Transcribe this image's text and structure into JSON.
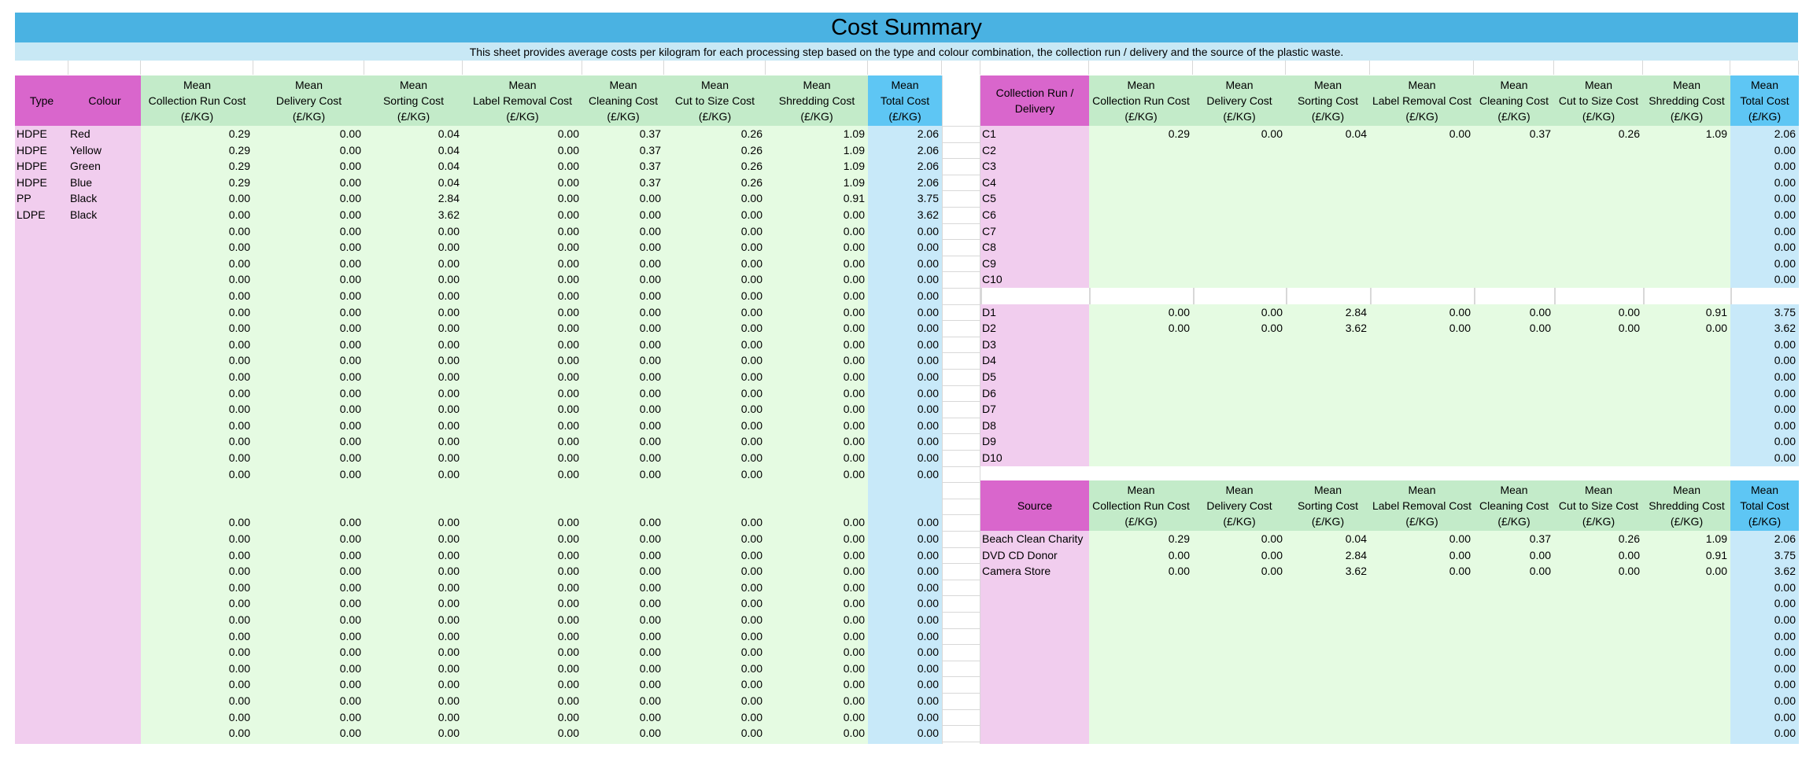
{
  "sheet": {
    "title": "Cost Summary",
    "subtitle": "This sheet provides average costs per kilogram for each processing step based on the type and colour combination, the collection run / delivery and the source of the plastic waste."
  },
  "cost_headers": [
    [
      "Mean",
      "Collection Run Cost",
      "(£/KG)"
    ],
    [
      "Mean",
      "Delivery Cost",
      "(£/KG)"
    ],
    [
      "Mean",
      "Sorting Cost",
      "(£/KG)"
    ],
    [
      "Mean",
      "Label Removal Cost",
      "(£/KG)"
    ],
    [
      "Mean",
      "Cleaning Cost",
      "(£/KG)"
    ],
    [
      "Mean",
      "Cut to Size Cost",
      "(£/KG)"
    ],
    [
      "Mean",
      "Shredding Cost",
      "(£/KG)"
    ],
    [
      "Mean",
      "Total Cost",
      "(£/KG)"
    ]
  ],
  "left_table": {
    "type_header": "Type",
    "colour_header": "Colour",
    "rows": [
      {
        "type": "HDPE",
        "colour": "Red",
        "values": [
          "0.29",
          "0.00",
          "0.04",
          "0.00",
          "0.37",
          "0.26",
          "1.09",
          "2.06"
        ]
      },
      {
        "type": "HDPE",
        "colour": "Yellow",
        "values": [
          "0.29",
          "0.00",
          "0.04",
          "0.00",
          "0.37",
          "0.26",
          "1.09",
          "2.06"
        ]
      },
      {
        "type": "HDPE",
        "colour": "Green",
        "values": [
          "0.29",
          "0.00",
          "0.04",
          "0.00",
          "0.37",
          "0.26",
          "1.09",
          "2.06"
        ]
      },
      {
        "type": "HDPE",
        "colour": "Blue",
        "values": [
          "0.29",
          "0.00",
          "0.04",
          "0.00",
          "0.37",
          "0.26",
          "1.09",
          "2.06"
        ]
      },
      {
        "type": "PP",
        "colour": "Black",
        "values": [
          "0.00",
          "0.00",
          "2.84",
          "0.00",
          "0.00",
          "0.00",
          "0.91",
          "3.75"
        ]
      },
      {
        "type": "LDPE",
        "colour": "Black",
        "values": [
          "0.00",
          "0.00",
          "3.62",
          "0.00",
          "0.00",
          "0.00",
          "0.00",
          "3.62"
        ]
      },
      {
        "type": "",
        "colour": "",
        "values": [
          "0.00",
          "0.00",
          "0.00",
          "0.00",
          "0.00",
          "0.00",
          "0.00",
          "0.00"
        ]
      },
      {
        "type": "",
        "colour": "",
        "values": [
          "0.00",
          "0.00",
          "0.00",
          "0.00",
          "0.00",
          "0.00",
          "0.00",
          "0.00"
        ]
      },
      {
        "type": "",
        "colour": "",
        "values": [
          "0.00",
          "0.00",
          "0.00",
          "0.00",
          "0.00",
          "0.00",
          "0.00",
          "0.00"
        ]
      },
      {
        "type": "",
        "colour": "",
        "values": [
          "0.00",
          "0.00",
          "0.00",
          "0.00",
          "0.00",
          "0.00",
          "0.00",
          "0.00"
        ]
      },
      {
        "type": "",
        "colour": "",
        "values": [
          "0.00",
          "0.00",
          "0.00",
          "0.00",
          "0.00",
          "0.00",
          "0.00",
          "0.00"
        ]
      },
      {
        "type": "",
        "colour": "",
        "values": [
          "0.00",
          "0.00",
          "0.00",
          "0.00",
          "0.00",
          "0.00",
          "0.00",
          "0.00"
        ]
      },
      {
        "type": "",
        "colour": "",
        "values": [
          "0.00",
          "0.00",
          "0.00",
          "0.00",
          "0.00",
          "0.00",
          "0.00",
          "0.00"
        ]
      },
      {
        "type": "",
        "colour": "",
        "values": [
          "0.00",
          "0.00",
          "0.00",
          "0.00",
          "0.00",
          "0.00",
          "0.00",
          "0.00"
        ]
      },
      {
        "type": "",
        "colour": "",
        "values": [
          "0.00",
          "0.00",
          "0.00",
          "0.00",
          "0.00",
          "0.00",
          "0.00",
          "0.00"
        ]
      },
      {
        "type": "",
        "colour": "",
        "values": [
          "0.00",
          "0.00",
          "0.00",
          "0.00",
          "0.00",
          "0.00",
          "0.00",
          "0.00"
        ]
      },
      {
        "type": "",
        "colour": "",
        "values": [
          "0.00",
          "0.00",
          "0.00",
          "0.00",
          "0.00",
          "0.00",
          "0.00",
          "0.00"
        ]
      },
      {
        "type": "",
        "colour": "",
        "values": [
          "0.00",
          "0.00",
          "0.00",
          "0.00",
          "0.00",
          "0.00",
          "0.00",
          "0.00"
        ]
      },
      {
        "type": "",
        "colour": "",
        "values": [
          "0.00",
          "0.00",
          "0.00",
          "0.00",
          "0.00",
          "0.00",
          "0.00",
          "0.00"
        ]
      },
      {
        "type": "",
        "colour": "",
        "values": [
          "0.00",
          "0.00",
          "0.00",
          "0.00",
          "0.00",
          "0.00",
          "0.00",
          "0.00"
        ]
      },
      {
        "type": "",
        "colour": "",
        "values": [
          "0.00",
          "0.00",
          "0.00",
          "0.00",
          "0.00",
          "0.00",
          "0.00",
          "0.00"
        ]
      },
      {
        "type": "",
        "colour": "",
        "values": [
          "0.00",
          "0.00",
          "0.00",
          "0.00",
          "0.00",
          "0.00",
          "0.00",
          "0.00"
        ]
      },
      {
        "type": "",
        "colour": "",
        "values": [
          "0.00",
          "0.00",
          "0.00",
          "0.00",
          "0.00",
          "0.00",
          "0.00",
          "0.00"
        ]
      },
      {
        "type": "",
        "colour": "",
        "values": [
          "0.00",
          "0.00",
          "0.00",
          "0.00",
          "0.00",
          "0.00",
          "0.00",
          "0.00"
        ]
      },
      {
        "type": "",
        "colour": "",
        "values": [
          "0.00",
          "0.00",
          "0.00",
          "0.00",
          "0.00",
          "0.00",
          "0.00",
          "0.00"
        ]
      },
      {
        "type": "",
        "colour": "",
        "values": [
          "0.00",
          "0.00",
          "0.00",
          "0.00",
          "0.00",
          "0.00",
          "0.00",
          "0.00"
        ]
      },
      {
        "type": "",
        "colour": "",
        "values": [
          "0.00",
          "0.00",
          "0.00",
          "0.00",
          "0.00",
          "0.00",
          "0.00",
          "0.00"
        ]
      },
      {
        "type": "",
        "colour": "",
        "values": [
          "0.00",
          "0.00",
          "0.00",
          "0.00",
          "0.00",
          "0.00",
          "0.00",
          "0.00"
        ]
      },
      {
        "type": "",
        "colour": "",
        "values": [
          "0.00",
          "0.00",
          "0.00",
          "0.00",
          "0.00",
          "0.00",
          "0.00",
          "0.00"
        ]
      },
      {
        "type": "",
        "colour": "",
        "values": [
          "0.00",
          "0.00",
          "0.00",
          "0.00",
          "0.00",
          "0.00",
          "0.00",
          "0.00"
        ]
      },
      {
        "type": "",
        "colour": "",
        "values": [
          "0.00",
          "0.00",
          "0.00",
          "0.00",
          "0.00",
          "0.00",
          "0.00",
          "0.00"
        ]
      },
      {
        "type": "",
        "colour": "",
        "values": [
          "0.00",
          "0.00",
          "0.00",
          "0.00",
          "0.00",
          "0.00",
          "0.00",
          "0.00"
        ]
      },
      {
        "type": "",
        "colour": "",
        "values": [
          "0.00",
          "0.00",
          "0.00",
          "0.00",
          "0.00",
          "0.00",
          "0.00",
          "0.00"
        ]
      },
      {
        "type": "",
        "colour": "",
        "values": [
          "0.00",
          "0.00",
          "0.00",
          "0.00",
          "0.00",
          "0.00",
          "0.00",
          "0.00"
        ]
      },
      {
        "type": "",
        "colour": "",
        "values": [
          "0.00",
          "0.00",
          "0.00",
          "0.00",
          "0.00",
          "0.00",
          "0.00",
          "0.00"
        ]
      },
      {
        "type": "",
        "colour": "",
        "values": [
          "0.00",
          "0.00",
          "0.00",
          "0.00",
          "0.00",
          "0.00",
          "0.00",
          "0.00"
        ]
      }
    ]
  },
  "collection_table": {
    "header": [
      "Collection Run /",
      "Delivery"
    ],
    "runs": [
      {
        "label": "C1",
        "values": [
          "0.29",
          "0.00",
          "0.04",
          "0.00",
          "0.37",
          "0.26",
          "1.09",
          "2.06"
        ]
      },
      {
        "label": "C2",
        "values": [
          "",
          "",
          "",
          "",
          "",
          "",
          "",
          "0.00"
        ]
      },
      {
        "label": "C3",
        "values": [
          "",
          "",
          "",
          "",
          "",
          "",
          "",
          "0.00"
        ]
      },
      {
        "label": "C4",
        "values": [
          "",
          "",
          "",
          "",
          "",
          "",
          "",
          "0.00"
        ]
      },
      {
        "label": "C5",
        "values": [
          "",
          "",
          "",
          "",
          "",
          "",
          "",
          "0.00"
        ]
      },
      {
        "label": "C6",
        "values": [
          "",
          "",
          "",
          "",
          "",
          "",
          "",
          "0.00"
        ]
      },
      {
        "label": "C7",
        "values": [
          "",
          "",
          "",
          "",
          "",
          "",
          "",
          "0.00"
        ]
      },
      {
        "label": "C8",
        "values": [
          "",
          "",
          "",
          "",
          "",
          "",
          "",
          "0.00"
        ]
      },
      {
        "label": "C9",
        "values": [
          "",
          "",
          "",
          "",
          "",
          "",
          "",
          "0.00"
        ]
      },
      {
        "label": "C10",
        "values": [
          "",
          "",
          "",
          "",
          "",
          "",
          "",
          "0.00"
        ]
      }
    ],
    "deliveries": [
      {
        "label": "D1",
        "values": [
          "0.00",
          "0.00",
          "2.84",
          "0.00",
          "0.00",
          "0.00",
          "0.91",
          "3.75"
        ]
      },
      {
        "label": "D2",
        "values": [
          "0.00",
          "0.00",
          "3.62",
          "0.00",
          "0.00",
          "0.00",
          "0.00",
          "3.62"
        ]
      },
      {
        "label": "D3",
        "values": [
          "",
          "",
          "",
          "",
          "",
          "",
          "",
          "0.00"
        ]
      },
      {
        "label": "D4",
        "values": [
          "",
          "",
          "",
          "",
          "",
          "",
          "",
          "0.00"
        ]
      },
      {
        "label": "D5",
        "values": [
          "",
          "",
          "",
          "",
          "",
          "",
          "",
          "0.00"
        ]
      },
      {
        "label": "D6",
        "values": [
          "",
          "",
          "",
          "",
          "",
          "",
          "",
          "0.00"
        ]
      },
      {
        "label": "D7",
        "values": [
          "",
          "",
          "",
          "",
          "",
          "",
          "",
          "0.00"
        ]
      },
      {
        "label": "D8",
        "values": [
          "",
          "",
          "",
          "",
          "",
          "",
          "",
          "0.00"
        ]
      },
      {
        "label": "D9",
        "values": [
          "",
          "",
          "",
          "",
          "",
          "",
          "",
          "0.00"
        ]
      },
      {
        "label": "D10",
        "values": [
          "",
          "",
          "",
          "",
          "",
          "",
          "",
          "0.00"
        ]
      }
    ]
  },
  "source_table": {
    "header": "Source",
    "rows": [
      {
        "label": "Beach Clean Charity",
        "values": [
          "0.29",
          "0.00",
          "0.04",
          "0.00",
          "0.37",
          "0.26",
          "1.09",
          "2.06"
        ]
      },
      {
        "label": "DVD CD Donor",
        "values": [
          "0.00",
          "0.00",
          "2.84",
          "0.00",
          "0.00",
          "0.00",
          "0.91",
          "3.75"
        ]
      },
      {
        "label": "Camera Store",
        "values": [
          "0.00",
          "0.00",
          "3.62",
          "0.00",
          "0.00",
          "0.00",
          "0.00",
          "3.62"
        ]
      },
      {
        "label": "",
        "values": [
          "",
          "",
          "",
          "",
          "",
          "",
          "",
          "0.00"
        ]
      },
      {
        "label": "",
        "values": [
          "",
          "",
          "",
          "",
          "",
          "",
          "",
          "0.00"
        ]
      },
      {
        "label": "",
        "values": [
          "",
          "",
          "",
          "",
          "",
          "",
          "",
          "0.00"
        ]
      },
      {
        "label": "",
        "values": [
          "",
          "",
          "",
          "",
          "",
          "",
          "",
          "0.00"
        ]
      },
      {
        "label": "",
        "values": [
          "",
          "",
          "",
          "",
          "",
          "",
          "",
          "0.00"
        ]
      },
      {
        "label": "",
        "values": [
          "",
          "",
          "",
          "",
          "",
          "",
          "",
          "0.00"
        ]
      },
      {
        "label": "",
        "values": [
          "",
          "",
          "",
          "",
          "",
          "",
          "",
          "0.00"
        ]
      },
      {
        "label": "",
        "values": [
          "",
          "",
          "",
          "",
          "",
          "",
          "",
          "0.00"
        ]
      },
      {
        "label": "",
        "values": [
          "",
          "",
          "",
          "",
          "",
          "",
          "",
          "0.00"
        ]
      },
      {
        "label": "",
        "values": [
          "",
          "",
          "",
          "",
          "",
          "",
          "",
          "0.00"
        ]
      }
    ]
  }
}
